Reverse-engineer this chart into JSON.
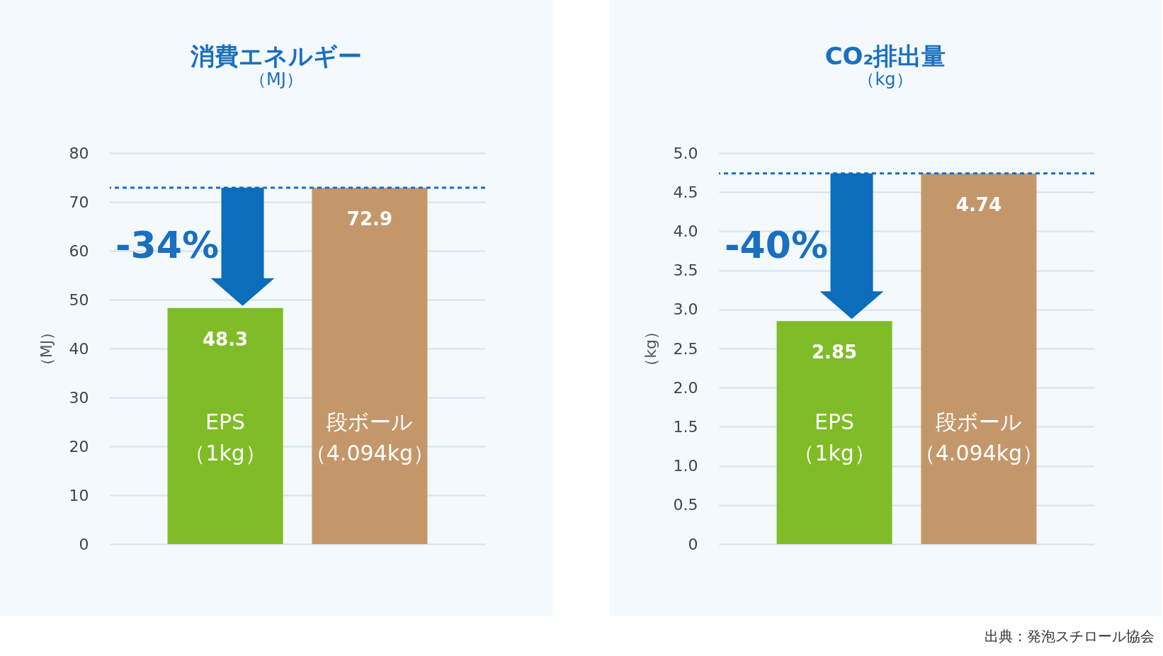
{
  "chart_data": [
    {
      "type": "bar",
      "title": "消費エネルギー",
      "subtitle": "（MJ）",
      "ylabel": "（MJ）",
      "categories": [
        "EPS（1kg）",
        "段ボール（4.094kg）"
      ],
      "values": [
        48.3,
        72.9
      ],
      "colors": [
        "#7fbc27",
        "#c4976b"
      ],
      "ylim": [
        0,
        80
      ],
      "yticks": [
        0,
        10,
        20,
        30,
        40,
        50,
        60,
        70,
        80
      ],
      "grid": "y",
      "data_labels": true,
      "ref_lines": [
        {
          "axis": "y",
          "value": 72.9,
          "color": "#1a6fbf",
          "line_style": "dashed"
        }
      ],
      "annotations": [
        "-34%"
      ]
    },
    {
      "type": "bar",
      "title": "CO₂排出量",
      "subtitle": "（kg）",
      "ylabel": "（kg）",
      "categories": [
        "EPS（1kg）",
        "段ボール（4.094kg）"
      ],
      "values": [
        2.85,
        4.74
      ],
      "colors": [
        "#7fbc27",
        "#c4976b"
      ],
      "ylim": [
        0,
        5
      ],
      "yticks": [
        0,
        {
          "value": 0.5,
          "label": "0.5"
        },
        {
          "value": 1,
          "label": "1.0"
        },
        {
          "value": 1.5,
          "label": "1.5"
        },
        {
          "value": 2,
          "label": "2.0"
        },
        {
          "value": 2.5,
          "label": "2.5"
        },
        {
          "value": 3,
          "label": "3.0"
        },
        {
          "value": 3.5,
          "label": "3.5"
        },
        {
          "value": 4,
          "label": "4.0"
        },
        {
          "value": 4.5,
          "label": "4.5"
        },
        {
          "value": 5,
          "label": "5.0"
        }
      ],
      "grid": "y",
      "data_labels": true,
      "ref_lines": [
        {
          "axis": "y",
          "value": 4.74,
          "color": "#1a6fbf",
          "line_style": "dashed"
        }
      ],
      "annotations": [
        "-40%",
        "出典：発泡スチロール協会"
      ]
    }
  ]
}
